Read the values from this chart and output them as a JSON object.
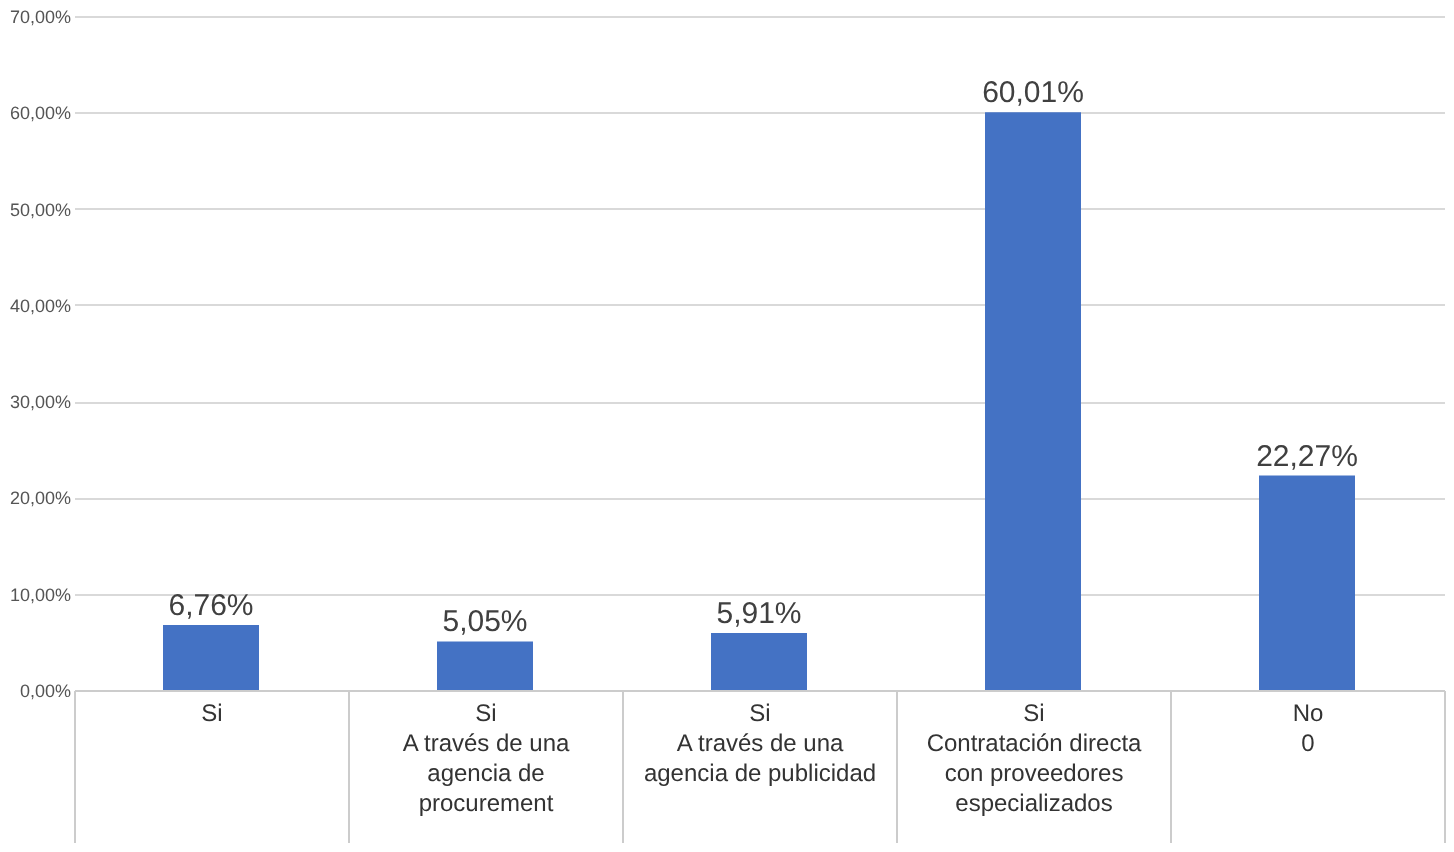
{
  "chart_data": {
    "type": "bar",
    "categories": [
      "Si",
      "Si\nA través de una\nagencia de\nprocurement",
      "Si\nA través de una\nagencia de publicidad",
      "Si\nContratación directa\ncon proveedores\nespecializados",
      "No\n0"
    ],
    "values": [
      6.76,
      5.05,
      5.91,
      60.01,
      22.27
    ],
    "value_labels": [
      "6,76%",
      "5,05%",
      "5,91%",
      "60,01%",
      "22,27%"
    ],
    "color": "#4472c4",
    "ylim": [
      0,
      70
    ],
    "yticks": [
      {
        "value": 0,
        "label": "0,00%"
      },
      {
        "value": 10,
        "label": "10,00%"
      },
      {
        "value": 20,
        "label": "20,00%"
      },
      {
        "value": 30,
        "label": "30,00%"
      },
      {
        "value": 40,
        "label": "40,00%"
      },
      {
        "value": 50,
        "label": "50,00%"
      },
      {
        "value": 60,
        "label": "60,00%"
      },
      {
        "value": 70,
        "label": "70,00%"
      }
    ],
    "grid": "y"
  }
}
